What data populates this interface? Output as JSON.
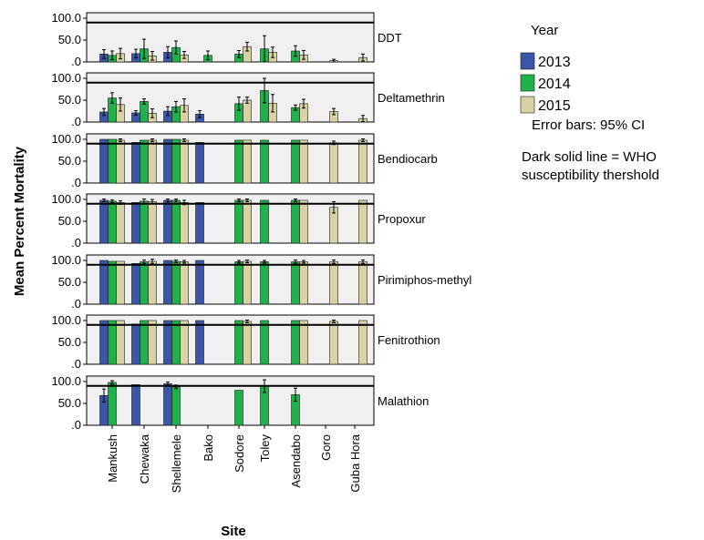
{
  "chart_data": {
    "type": "bar",
    "xlabel": "Site",
    "ylabel": "Mean Percent Mortality",
    "ylim": [
      0,
      100
    ],
    "y_ticks": [
      ".0",
      "50.0",
      "100.0"
    ],
    "categories": [
      "Mankush",
      "Chewaka",
      "Shellemele",
      "Bako",
      "Sodore",
      "Toley",
      "Asendabo",
      "Goro",
      "Guba Hora"
    ],
    "legend": {
      "title": "Year",
      "placement": "right",
      "items": [
        {
          "label": "2013",
          "color": "#3b56a6"
        },
        {
          "label": "2014",
          "color": "#1fb14a"
        },
        {
          "label": "2015",
          "color": "#d9d2a3"
        }
      ]
    },
    "notes": [
      "Error bars: 95% CI",
      "Dark solid line = WHO",
      "susceptibility thershold"
    ],
    "threshold": 90,
    "panel_background": "#f0f0f0",
    "panels": [
      {
        "label": "DDT",
        "series": [
          {
            "name": "2013",
            "values": [
              18,
              19,
              22,
              null,
              null,
              null,
              null,
              null,
              null
            ],
            "err": [
              10,
              10,
              13,
              null,
              null,
              null,
              null,
              null,
              null
            ]
          },
          {
            "name": "2014",
            "values": [
              15,
              30,
              33,
              15,
              18,
              30,
              25,
              null,
              null
            ],
            "err": [
              10,
              22,
              15,
              10,
              8,
              30,
              12,
              null,
              null
            ]
          },
          {
            "name": "2015",
            "values": [
              19,
              14,
              16,
              null,
              35,
              22,
              16,
              3,
              10
            ],
            "err": [
              12,
              10,
              8,
              null,
              10,
              12,
              10,
              3,
              8
            ]
          }
        ]
      },
      {
        "label": "Deltamethrin",
        "series": [
          {
            "name": "2013",
            "values": [
              23,
              21,
              25,
              18,
              null,
              null,
              null,
              null,
              null
            ],
            "err": [
              8,
              5,
              10,
              8,
              null,
              null,
              null,
              null,
              null
            ]
          },
          {
            "name": "2014",
            "values": [
              55,
              47,
              35,
              null,
              42,
              72,
              33,
              null,
              null
            ],
            "err": [
              12,
              6,
              12,
              null,
              15,
              28,
              6,
              null,
              null
            ]
          },
          {
            "name": "2015",
            "values": [
              40,
              20,
              38,
              null,
              50,
              43,
              42,
              24,
              8
            ],
            "err": [
              15,
              10,
              15,
              null,
              7,
              20,
              10,
              7,
              7
            ]
          }
        ]
      },
      {
        "label": "Bendiocarb",
        "series": [
          {
            "name": "2013",
            "values": [
              100,
              93,
              100,
              93,
              null,
              null,
              null,
              null,
              null
            ],
            "err": [
              null,
              null,
              null,
              null,
              null,
              null,
              null,
              null,
              null
            ]
          },
          {
            "name": "2014",
            "values": [
              100,
              98,
              100,
              null,
              98,
              98,
              98,
              null,
              null
            ],
            "err": [
              null,
              null,
              null,
              null,
              null,
              null,
              null,
              null,
              null
            ]
          },
          {
            "name": "2015",
            "values": [
              98,
              98,
              98,
              null,
              98,
              null,
              98,
              92,
              98
            ],
            "err": [
              3,
              3,
              3,
              null,
              null,
              null,
              null,
              4,
              3
            ]
          }
        ]
      },
      {
        "label": "Propoxur",
        "series": [
          {
            "name": "2013",
            "values": [
              98,
              93,
              98,
              93,
              null,
              null,
              null,
              null,
              null
            ],
            "err": [
              3,
              null,
              3,
              null,
              null,
              null,
              null,
              null,
              null
            ]
          },
          {
            "name": "2014",
            "values": [
              96,
              96,
              98,
              null,
              98,
              98,
              98,
              null,
              null
            ],
            "err": [
              3,
              5,
              3,
              null,
              3,
              null,
              3,
              null,
              null
            ]
          },
          {
            "name": "2015",
            "values": [
              93,
              95,
              93,
              null,
              98,
              null,
              98,
              82,
              98
            ],
            "err": [
              4,
              5,
              5,
              null,
              3,
              null,
              null,
              13,
              null
            ]
          }
        ]
      },
      {
        "label": "Pirimiphos-methyl",
        "series": [
          {
            "name": "2013",
            "values": [
              100,
              93,
              100,
              100,
              null,
              null,
              null,
              null,
              null
            ],
            "err": [
              null,
              null,
              null,
              null,
              null,
              null,
              null,
              null,
              null
            ]
          },
          {
            "name": "2014",
            "values": [
              98,
              97,
              98,
              null,
              97,
              97,
              97,
              null,
              null
            ],
            "err": [
              null,
              4,
              3,
              null,
              3,
              3,
              4,
              null,
              null
            ]
          },
          {
            "name": "2015",
            "values": [
              98,
              98,
              97,
              null,
              98,
              null,
              97,
              97,
              97
            ],
            "err": [
              null,
              5,
              3,
              null,
              3,
              null,
              3,
              4,
              4
            ]
          }
        ]
      },
      {
        "label": "Fenitrothion",
        "series": [
          {
            "name": "2013",
            "values": [
              100,
              92,
              100,
              100,
              null,
              null,
              null,
              null,
              null
            ],
            "err": [
              null,
              null,
              null,
              null,
              null,
              null,
              null,
              null,
              null
            ]
          },
          {
            "name": "2014",
            "values": [
              100,
              100,
              100,
              null,
              100,
              100,
              100,
              null,
              null
            ],
            "err": [
              null,
              null,
              null,
              null,
              null,
              null,
              null,
              null,
              null
            ]
          },
          {
            "name": "2015",
            "values": [
              100,
              100,
              100,
              null,
              98,
              null,
              100,
              98,
              100
            ],
            "err": [
              null,
              null,
              null,
              null,
              3,
              null,
              null,
              3,
              null
            ]
          }
        ]
      },
      {
        "label": "Malathion",
        "series": [
          {
            "name": "2013",
            "values": [
              68,
              93,
              95,
              null,
              null,
              null,
              null,
              null,
              null
            ],
            "err": [
              15,
              null,
              4,
              null,
              null,
              null,
              null,
              null,
              null
            ]
          },
          {
            "name": "2014",
            "values": [
              98,
              null,
              88,
              null,
              80,
              90,
              70,
              null,
              null
            ],
            "err": [
              4,
              null,
              4,
              null,
              null,
              15,
              15,
              null,
              null
            ]
          },
          {
            "name": "2015",
            "values": [
              null,
              null,
              null,
              null,
              null,
              null,
              null,
              null,
              null
            ],
            "err": [
              null,
              null,
              null,
              null,
              null,
              null,
              null,
              null,
              null
            ]
          }
        ]
      }
    ]
  }
}
